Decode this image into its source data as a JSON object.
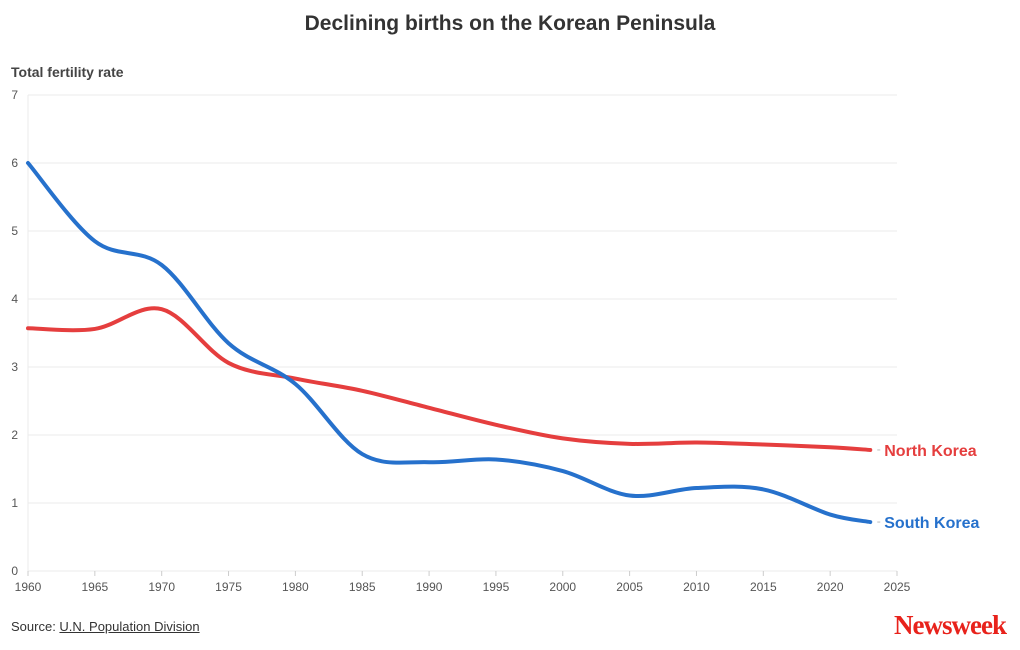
{
  "chart_data": {
    "type": "line",
    "title": "Declining births on the Korean Peninsula",
    "ylabel": "Total fertility rate",
    "xlabel": "",
    "xlim": [
      1960,
      2025
    ],
    "ylim": [
      0,
      7
    ],
    "grid": true,
    "xticks": [
      1960,
      1965,
      1970,
      1975,
      1980,
      1985,
      1990,
      1995,
      2000,
      2005,
      2010,
      2015,
      2020,
      2025
    ],
    "yticks": [
      0,
      1,
      2,
      3,
      4,
      5,
      6,
      7
    ],
    "x": [
      1960,
      1965,
      1970,
      1975,
      1980,
      1985,
      1990,
      1995,
      2000,
      2005,
      2010,
      2015,
      2020,
      2023
    ],
    "series": [
      {
        "name": "North Korea",
        "color": "#e53e3e",
        "values": [
          3.57,
          3.56,
          3.85,
          3.06,
          2.83,
          2.65,
          2.4,
          2.15,
          1.95,
          1.87,
          1.89,
          1.86,
          1.82,
          1.78
        ]
      },
      {
        "name": "South Korea",
        "color": "#2671cc",
        "values": [
          6.0,
          4.85,
          4.5,
          3.35,
          2.75,
          1.72,
          1.6,
          1.64,
          1.47,
          1.11,
          1.22,
          1.2,
          0.83,
          0.72
        ]
      }
    ]
  },
  "footer": {
    "source_prefix": "Source: ",
    "source_link": "U.N. Population Division",
    "logo": "Newsweek"
  }
}
